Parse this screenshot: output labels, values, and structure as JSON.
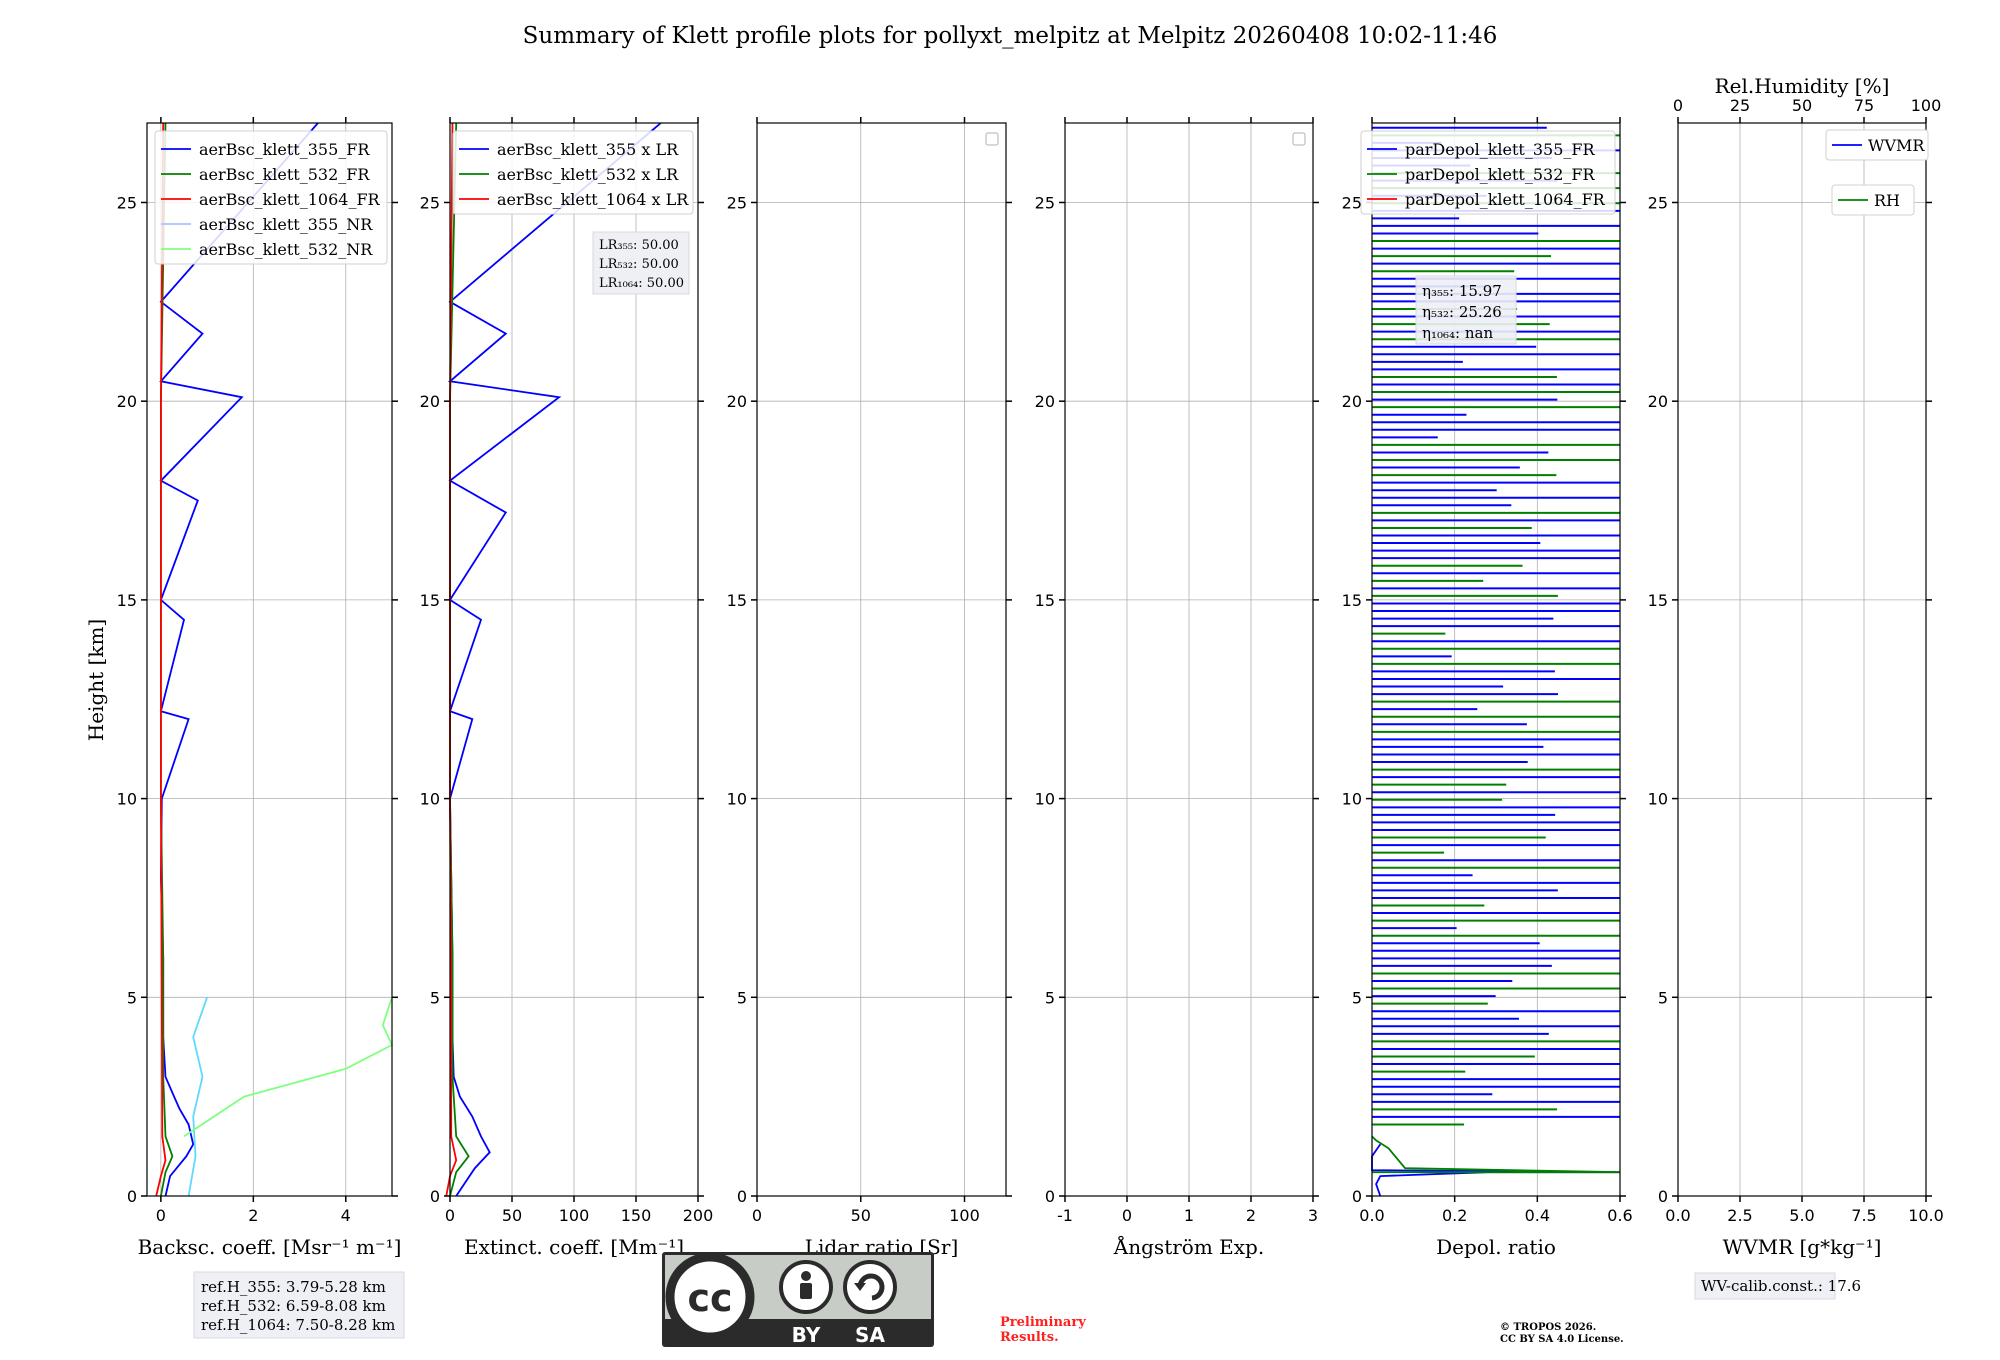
{
  "title": "Summary of Klett profile plots for pollyxt_melpitz at Melpitz 20260408 10:02-11:46",
  "ylabel": "Height [km]",
  "yticks": [
    0,
    5,
    10,
    15,
    20,
    25
  ],
  "ylim": [
    0,
    27
  ],
  "chart_data": [
    {
      "type": "line",
      "id": "bsc",
      "xlabel": "Backsc. coeff. [Msr⁻¹ m⁻¹]",
      "xlim": [
        -0.3,
        5
      ],
      "xticks": [
        0,
        2,
        4
      ],
      "legend": [
        "aerBsc_klett_355_FR",
        "aerBsc_klett_532_FR",
        "aerBsc_klett_1064_FR",
        "aerBsc_klett_355_NR",
        "aerBsc_klett_532_NR"
      ],
      "legend_colors": [
        "#0000ff",
        "#008000",
        "#ff0000",
        "#a8c4ff",
        "#80ff80"
      ],
      "legend_position": "top-right",
      "series": [
        {
          "name": "aerBsc_klett_355_FR",
          "color": "#0000ff",
          "points": [
            [
              0.1,
              0
            ],
            [
              0.2,
              0.5
            ],
            [
              0.55,
              1
            ],
            [
              0.7,
              1.3
            ],
            [
              0.6,
              1.8
            ],
            [
              0.4,
              2.2
            ],
            [
              0.25,
              2.6
            ],
            [
              0.1,
              3
            ],
            [
              0.05,
              4
            ],
            [
              0.05,
              6
            ],
            [
              0.0,
              8
            ],
            [
              0.02,
              10
            ],
            [
              0.6,
              12
            ],
            [
              0.0,
              12.2
            ],
            [
              0.5,
              14.5
            ],
            [
              0.0,
              15
            ],
            [
              0.8,
              17.5
            ],
            [
              0.0,
              18
            ],
            [
              1.75,
              20.1
            ],
            [
              0.0,
              20.5
            ],
            [
              0.9,
              21.7
            ],
            [
              0.0,
              22.5
            ],
            [
              3.4,
              27
            ]
          ]
        },
        {
          "name": "aerBsc_klett_532_FR",
          "color": "#008000",
          "points": [
            [
              0.0,
              0
            ],
            [
              0.1,
              0.6
            ],
            [
              0.25,
              1.0
            ],
            [
              0.1,
              1.5
            ],
            [
              0.05,
              3
            ],
            [
              0.05,
              6
            ],
            [
              0.0,
              10
            ],
            [
              0.0,
              20
            ],
            [
              0.1,
              27
            ]
          ]
        },
        {
          "name": "aerBsc_klett_1064_FR",
          "color": "#ff0000",
          "points": [
            [
              -0.1,
              0
            ],
            [
              0.0,
              0.5
            ],
            [
              0.1,
              0.9
            ],
            [
              0.03,
              1.5
            ],
            [
              0.02,
              5
            ],
            [
              0.0,
              10
            ],
            [
              0.0,
              20
            ],
            [
              0.05,
              27
            ]
          ]
        },
        {
          "name": "aerBsc_klett_355_NR",
          "color": "#5fd9ff",
          "points": [
            [
              0.6,
              0
            ],
            [
              0.75,
              1
            ],
            [
              0.7,
              2
            ],
            [
              0.9,
              3
            ],
            [
              0.7,
              4
            ],
            [
              1.0,
              5
            ]
          ]
        },
        {
          "name": "aerBsc_klett_532_NR",
          "color": "#80ff80",
          "points": [
            [
              0.5,
              1.5
            ],
            [
              1.8,
              2.5
            ],
            [
              4.0,
              3.2
            ],
            [
              5.0,
              3.8
            ],
            [
              4.8,
              4.3
            ],
            [
              5.0,
              5
            ]
          ]
        }
      ],
      "ref_box": [
        "ref.H_355: 3.79-5.28 km",
        "ref.H_532: 6.59-8.08 km",
        "ref.H_1064: 7.50-8.28 km"
      ]
    },
    {
      "type": "line",
      "id": "ext",
      "xlabel": "Extinct. coeff. [Mm⁻¹]",
      "xlim": [
        0,
        200
      ],
      "xticks": [
        0,
        50,
        100,
        150,
        200
      ],
      "legend": [
        "aerBsc_klett_355 x LR",
        "aerBsc_klett_532 x LR",
        "aerBsc_klett_1064 x LR"
      ],
      "legend_colors": [
        "#0000ff",
        "#008000",
        "#ff0000"
      ],
      "legend_position": "top-right",
      "lr_box": [
        "LR₃₅₅: 50.00",
        "LR₅₃₂: 50.00",
        "LR₁₀₆₄: 50.00"
      ],
      "series": [
        {
          "name": "aerBsc_klett_355 x LR",
          "color": "#0000ff",
          "points": [
            [
              5,
              0
            ],
            [
              20,
              0.7
            ],
            [
              32,
              1.1
            ],
            [
              25,
              1.5
            ],
            [
              18,
              2.0
            ],
            [
              8,
              2.5
            ],
            [
              3,
              3
            ],
            [
              2,
              4
            ],
            [
              2,
              6
            ],
            [
              0,
              10
            ],
            [
              18,
              12
            ],
            [
              0,
              12.2
            ],
            [
              25,
              14.5
            ],
            [
              0,
              15
            ],
            [
              45,
              17.2
            ],
            [
              0,
              18
            ],
            [
              88,
              20.1
            ],
            [
              0,
              20.5
            ],
            [
              45,
              21.7
            ],
            [
              0,
              22.5
            ],
            [
              170,
              27
            ]
          ]
        },
        {
          "name": "aerBsc_klett_532 x LR",
          "color": "#008000",
          "points": [
            [
              0,
              0
            ],
            [
              5,
              0.6
            ],
            [
              15,
              1.0
            ],
            [
              5,
              1.5
            ],
            [
              2,
              3
            ],
            [
              2,
              6
            ],
            [
              0,
              10
            ],
            [
              0,
              20
            ],
            [
              5,
              27
            ]
          ]
        },
        {
          "name": "aerBsc_klett_1064 x LR",
          "color": "#ff0000",
          "points": [
            [
              -3,
              0
            ],
            [
              0,
              0.5
            ],
            [
              5,
              0.9
            ],
            [
              1,
              1.5
            ],
            [
              1,
              5
            ],
            [
              0,
              10
            ],
            [
              0,
              20
            ],
            [
              2,
              27
            ]
          ]
        }
      ]
    },
    {
      "type": "line",
      "id": "lr",
      "xlabel": "Lidar ratio [Sr]",
      "xlim": [
        0,
        120
      ],
      "xticks": [
        0,
        50,
        100
      ],
      "series": []
    },
    {
      "type": "line",
      "id": "ang",
      "xlabel": "Ångström Exp.",
      "xlim": [
        -1,
        3
      ],
      "xticks": [
        -1,
        0,
        1,
        2,
        3
      ],
      "series": []
    },
    {
      "type": "line",
      "id": "depol",
      "xlabel": "Depol. ratio",
      "xlim": [
        0,
        0.6
      ],
      "xticks": [
        0.0,
        0.2,
        0.4,
        0.6
      ],
      "legend": [
        "parDepol_klett_355_FR",
        "parDepol_klett_532_FR",
        "parDepol_klett_1064_FR"
      ],
      "legend_colors": [
        "#0000ff",
        "#008000",
        "#ff0000"
      ],
      "legend_position": "top-right",
      "eta_box": [
        "η₃₅₅: 15.97",
        "η₅₃₂: 25.26",
        "η₁₀₆₄: nan"
      ],
      "series": [
        {
          "name": "parDepol_klett_355_FR",
          "color": "#0000ff",
          "points": [
            [
              0.02,
              0
            ],
            [
              0.01,
              0.3
            ],
            [
              0.02,
              0.5
            ],
            [
              0.28,
              0.6
            ],
            [
              0.6,
              0.6
            ],
            [
              0.0,
              0.65
            ],
            [
              0.0,
              1.0
            ],
            [
              0.02,
              1.3
            ]
          ]
        },
        {
          "name": "parDepol_klett_532_FR",
          "color": "#008000",
          "points": [
            [
              0.0,
              0.6
            ],
            [
              0.6,
              0.6
            ],
            [
              0.08,
              0.7
            ],
            [
              0.04,
              1.2
            ],
            [
              0.01,
              1.4
            ],
            [
              0.0,
              1.5
            ]
          ]
        }
      ]
    },
    {
      "type": "line",
      "id": "wv",
      "xlabel": "WVMR [g*kg⁻¹]",
      "xlim": [
        0,
        10
      ],
      "xticks": [
        0.0,
        2.5,
        5.0,
        7.5,
        10.0
      ],
      "top_xlabel": "Rel.Humidity [%]",
      "top_xlim": [
        0,
        100
      ],
      "top_xticks": [
        0,
        25,
        50,
        75,
        100
      ],
      "legend": [
        "WVMR",
        "RH"
      ],
      "legend_colors": [
        "#0000ff",
        "#008000"
      ],
      "calib_box": "WV-calib.const.: 17.6",
      "series": []
    }
  ],
  "footer": {
    "license_badge": {
      "by": "BY",
      "sa": "SA",
      "cc": "cc"
    },
    "preliminary": [
      "Preliminary",
      "Results."
    ],
    "copyright": [
      "© TROPOS 2026.",
      "CC BY SA 4.0 License."
    ]
  },
  "colors": {
    "blue": "#0000ff",
    "green": "#008000",
    "red": "#ff0000",
    "grid": "#b0b0b0",
    "badge_bg": "#c8ccc6",
    "badge_dark": "#2b2b2b",
    "preliminary": "#ff2020"
  }
}
